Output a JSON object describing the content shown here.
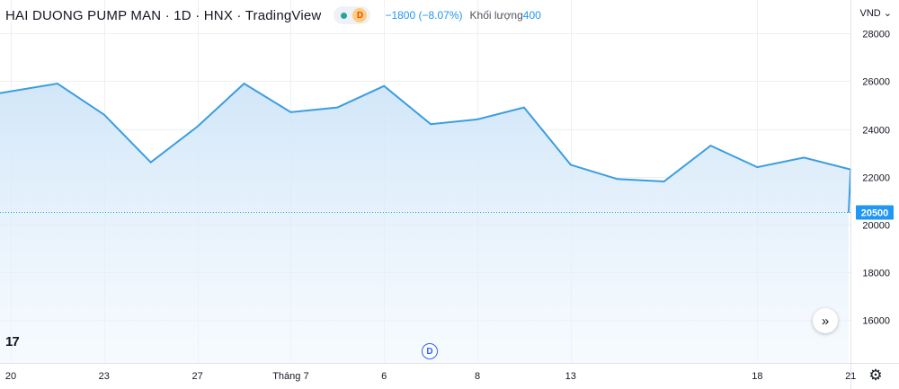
{
  "header": {
    "symbol": "HAI DUONG PUMP MAN · 1D · HNX · TradingView",
    "badge": "D",
    "change": "−1800 (−8.07%)",
    "volume_label": "Khối lượng",
    "volume_value": "400"
  },
  "currency": "VND",
  "colors": {
    "line": "#3b9de0",
    "fill": "#cfe5f8",
    "label_bg": "#2196f3",
    "grid": "#edf0f3"
  },
  "icons": {
    "nav": "double-chevron-right-icon",
    "logo": "tradingview-logo-icon",
    "dividend": "dividend-marker-icon",
    "settings": "gear-icon"
  },
  "chart_data": {
    "type": "area",
    "x": [
      "20",
      "",
      "23",
      "",
      "27",
      "",
      "Tháng 7",
      "",
      "6",
      "",
      "8",
      "",
      "13",
      "",
      "",
      "",
      "18",
      "",
      "21",
      ""
    ],
    "xlabel": "",
    "ylabel": "",
    "values": [
      25500,
      25900,
      24600,
      22600,
      24100,
      25900,
      24700,
      24900,
      25800,
      24200,
      24400,
      24900,
      22500,
      21900,
      21800,
      23300,
      22400,
      22800,
      22300,
      20500
    ],
    "y_ticks": [
      16000,
      18000,
      20000,
      22000,
      24000,
      26000,
      28000
    ],
    "ylim": [
      14200,
      29400
    ],
    "last_price": 20500,
    "grid": true
  }
}
